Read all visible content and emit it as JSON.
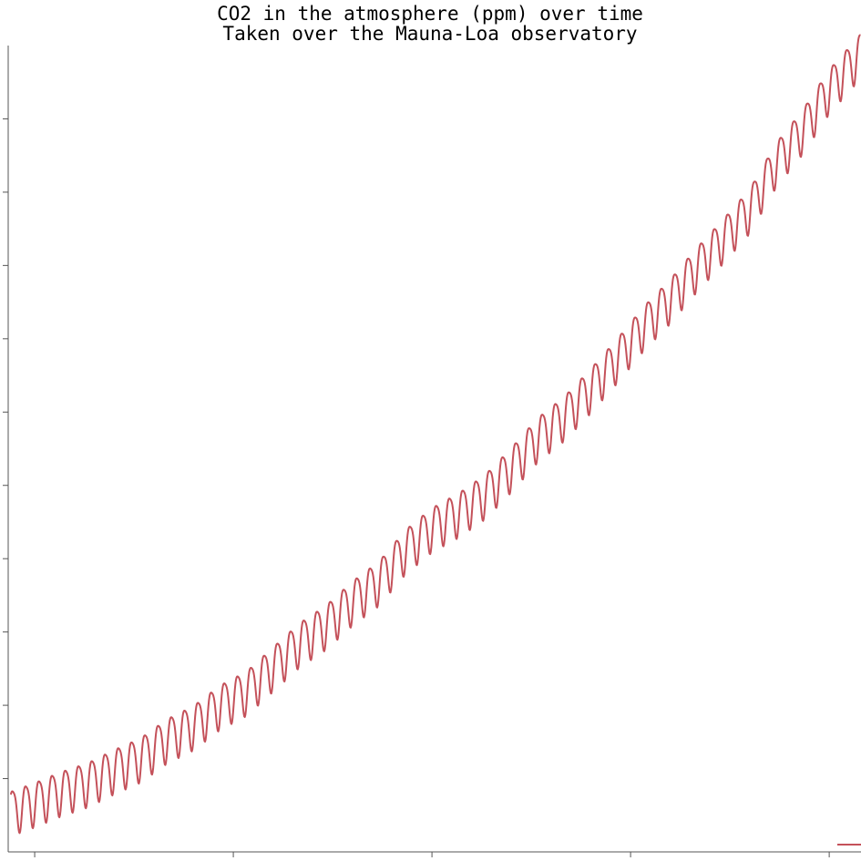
{
  "chart_data": {
    "type": "line",
    "title": "CO2 in the atmosphere (ppm) over time",
    "subtitle": "Taken over the Mauna-Loa observatory",
    "xlabel": "",
    "ylabel": "",
    "xlim": [
      1958.0,
      2022.4
    ],
    "ylim": [
      310.0,
      420.0
    ],
    "x_ticks": [
      1960,
      1975,
      1990,
      2005,
      2020
    ],
    "y_ticks": [
      320,
      330,
      340,
      350,
      360,
      370,
      380,
      390,
      400,
      410
    ],
    "tick_labels_shown": false,
    "grid": false,
    "legend": "bottom-right",
    "line_color": "#c4515a",
    "series": [
      {
        "sampling": "monthly",
        "x_start": 1958.2,
        "seasonal_amplitude": 3.0,
        "points": [
          [
            1958.2,
            315.7
          ],
          [
            1960,
            316.9
          ],
          [
            1962,
            318.4
          ],
          [
            1964,
            319.6
          ],
          [
            1966,
            321.4
          ],
          [
            1968,
            323.0
          ],
          [
            1970,
            325.6
          ],
          [
            1972,
            327.4
          ],
          [
            1974,
            330.2
          ],
          [
            1976,
            332.1
          ],
          [
            1978,
            335.4
          ],
          [
            1980,
            338.7
          ],
          [
            1982,
            341.1
          ],
          [
            1984,
            344.4
          ],
          [
            1986,
            347.1
          ],
          [
            1988,
            351.4
          ],
          [
            1990,
            354.4
          ],
          [
            1992,
            356.4
          ],
          [
            1994,
            358.9
          ],
          [
            1996,
            362.6
          ],
          [
            1998,
            366.7
          ],
          [
            2000,
            369.6
          ],
          [
            2002,
            373.4
          ],
          [
            2004,
            377.5
          ],
          [
            2006,
            381.9
          ],
          [
            2008,
            385.6
          ],
          [
            2010,
            389.9
          ],
          [
            2012,
            393.8
          ],
          [
            2014,
            397.9
          ],
          [
            2016,
            404.2
          ],
          [
            2018,
            408.7
          ],
          [
            2020,
            414.2
          ],
          [
            2022.4,
            419.1
          ]
        ]
      }
    ]
  }
}
